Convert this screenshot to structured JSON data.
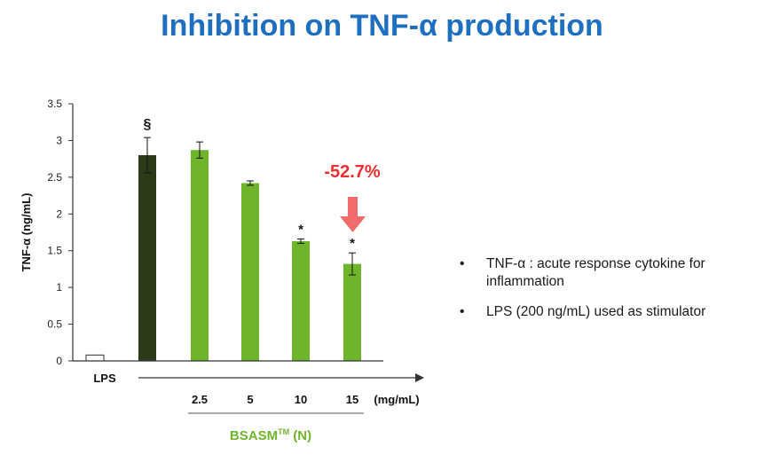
{
  "slide": {
    "title": "Inhibition on TNF-α production",
    "bullets": [
      "TNF-α : acute response cytokine for inflammation",
      "LPS (200 ng/mL) used as stimulator"
    ]
  },
  "chart_data": {
    "type": "bar",
    "title": "",
    "ylabel": "TNF-α (ng/mL)",
    "ylim": [
      0,
      3.5
    ],
    "yticks": [
      "0",
      "0.5",
      "1",
      "1.5",
      "2",
      "2.5",
      "3",
      "3.5"
    ],
    "grid": false,
    "categories": [
      "",
      "",
      "2.5",
      "5",
      "10",
      "15"
    ],
    "values": [
      0.08,
      2.8,
      2.87,
      2.42,
      1.63,
      1.32
    ],
    "errors": [
      0,
      0.24,
      0.11,
      0.03,
      0.03,
      0.15
    ],
    "markers": [
      "",
      "§",
      "",
      "",
      "*",
      "*"
    ],
    "bar_colors": [
      "#ffffff",
      "#2d3a1a",
      "#6fb52c",
      "#6fb52c",
      "#6fb52c",
      "#6fb52c"
    ],
    "lps_label": "LPS",
    "unit_label": "(mg/mL)",
    "group_label": "BSASM",
    "group_label_sup": "TM",
    "group_label_suffix": " (N)",
    "annotation": {
      "text": "-52.7%",
      "color": "#e8302f",
      "arrow_color": "#f26b6b"
    },
    "colors": {
      "green": "#6fb52c",
      "dark": "#2d3a1a",
      "axis": "#333333"
    }
  }
}
